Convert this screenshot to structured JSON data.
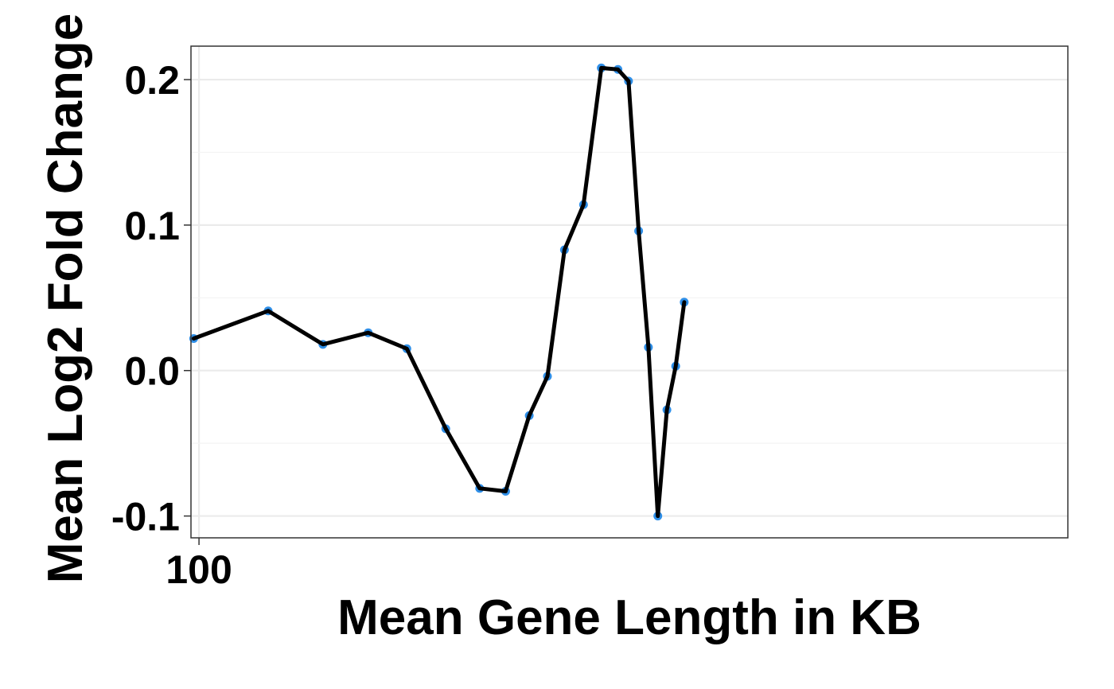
{
  "chart_data": {
    "type": "line",
    "title": "",
    "xlabel": "Mean Gene Length in KB",
    "ylabel": "Mean Log2 Fold Change",
    "x_scale": "log",
    "xlim": [
      97,
      2700
    ],
    "ylim": [
      -0.115,
      0.223
    ],
    "x_ticks": [
      {
        "value": 100,
        "label": "100"
      }
    ],
    "y_ticks": [
      {
        "value": -0.1,
        "label": "-0.1"
      },
      {
        "value": 0.0,
        "label": "0.0"
      },
      {
        "value": 0.1,
        "label": "0.1"
      },
      {
        "value": 0.2,
        "label": "0.2"
      }
    ],
    "grid": true,
    "legend": "none",
    "line_color": "#000000",
    "point_color": "#2f8fe8",
    "series": [
      {
        "x": [
          98,
          130,
          160,
          190,
          220,
          255,
          290,
          320,
          350,
          375,
          400,
          430,
          460,
          490,
          510,
          530,
          550,
          570,
          590,
          610,
          630
        ],
        "y": [
          0.022,
          0.041,
          0.018,
          0.026,
          0.015,
          -0.04,
          -0.081,
          -0.083,
          -0.031,
          -0.004,
          0.083,
          0.114,
          0.208,
          0.207,
          0.199,
          0.096,
          0.016,
          -0.1,
          -0.027,
          0.003,
          0.047
        ]
      }
    ]
  }
}
